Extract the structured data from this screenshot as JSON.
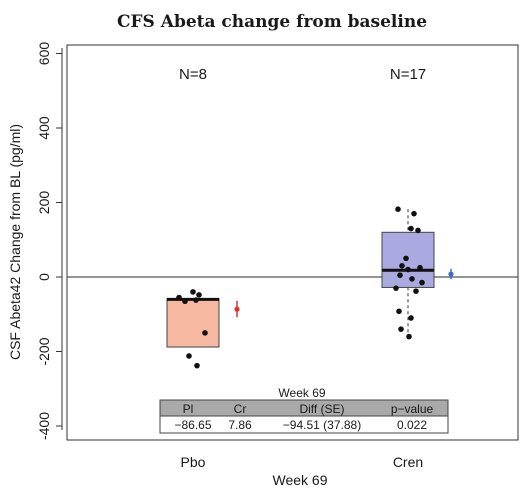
{
  "chart_data": {
    "type": "box",
    "title": "CFS Abeta change from baseline",
    "xlabel": "Week 69",
    "ylabel": "CSF Abeta42 Change from BL (pg/ml)",
    "ylim": [
      -450,
      620
    ],
    "yticks": [
      600,
      400,
      200,
      0,
      -200,
      -400
    ],
    "ytick_labels": [
      "600",
      "400",
      "200",
      "0",
      "-200",
      "-400"
    ],
    "reference_line": 0,
    "colors": {
      "pbo_fill": "#f6b8a0",
      "cren_fill": "#aaaae0",
      "pbo_ci": "#e03030",
      "cren_ci": "#3a6ec8"
    },
    "groups": [
      {
        "name": "Pbo",
        "n_label": "N=8",
        "box": {
          "q1": -188,
          "median": -60,
          "q3": -58
        },
        "whisker": {
          "low": -188,
          "high": -58
        },
        "points": [
          -40,
          -48,
          -55,
          -62,
          -65,
          -150,
          -212,
          -238
        ],
        "mean": -86.65,
        "ci": [
          -108,
          -64
        ]
      },
      {
        "name": "Cren",
        "n_label": "N=17",
        "box": {
          "q1": -28,
          "median": 18,
          "q3": 120
        },
        "whisker": {
          "low": -165,
          "high": 182
        },
        "points": [
          182,
          170,
          130,
          125,
          50,
          30,
          25,
          20,
          5,
          -5,
          -15,
          -30,
          -38,
          -92,
          -110,
          -140,
          -160
        ],
        "mean": 7.86,
        "ci": [
          -6,
          22
        ]
      }
    ],
    "table": {
      "title": "Week 69",
      "headers": [
        "Pl",
        "Cr",
        "Diff (SE)",
        "p−value"
      ],
      "row": [
        "−86.65",
        "7.86",
        "−94.51 (37.88)",
        "0.022"
      ]
    }
  }
}
